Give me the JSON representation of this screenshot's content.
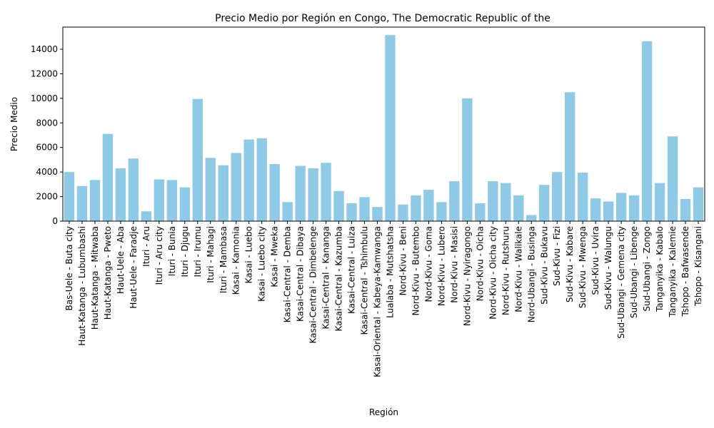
{
  "chart_data": {
    "type": "bar",
    "title": "Precio Medio por Región en Congo, The Democratic Republic of the",
    "xlabel": "Región",
    "ylabel": "Precio Medio",
    "ylim": [
      0,
      15800
    ],
    "yticks": [
      0,
      2000,
      4000,
      6000,
      8000,
      10000,
      12000,
      14000
    ],
    "bar_color": "#8ecae6",
    "grid": false,
    "categories": [
      "Bas-Uele - Buta city",
      "Haut-Katanga - Lubumbashi",
      "Haut-Katanga - Mitwaba",
      "Haut-Katanga - Pweto",
      "Haut-Uele - Aba",
      "Haut-Uele - Faradje",
      "Ituri - Aru",
      "Ituri - Aru city",
      "Ituri - Bunia",
      "Ituri - Djugu",
      "Ituri - Irumu",
      "Ituri - Mahagi",
      "Ituri - Mambasa",
      "Kasai - Kamonia",
      "Kasai - Luebo",
      "Kasai - Luebo city",
      "Kasai - Mweka",
      "Kasai-Central - Demba",
      "Kasai-Central - Dibaya",
      "Kasai-Central - Dimbelenge",
      "Kasai-Central - Kananga",
      "Kasai-Central - Kazumba",
      "Kasai-Central - Luiza",
      "Kasai-Central - Tshimbulu",
      "Kasai-Oriental - Kabeya-Kamwanga",
      "Lualaba - Mutshatsha",
      "Nord-Kivu - Beni",
      "Nord-Kivu - Butembo",
      "Nord-Kivu - Goma",
      "Nord-Kivu - Lubero",
      "Nord-Kivu - Masisi",
      "Nord-Kivu - Nyiragongo",
      "Nord-Kivu - Oicha",
      "Nord-Kivu - Oicha city",
      "Nord-Kivu - Rutshuru",
      "Nord-Kivu - Walikale",
      "Nord-Ubangi - Businga",
      "Sud-Kivu - Bukavu",
      "Sud-Kivu - Fizi",
      "Sud-Kivu - Kabare",
      "Sud-Kivu - Mwenga",
      "Sud-Kivu - Uvira",
      "Sud-Kivu - Walungu",
      "Sud-Ubangi - Gemena city",
      "Sud-Ubangi - Libenge",
      "Sud-Ubangi - Zongo",
      "Tanganyika - Kabalo",
      "Tanganyika - Kalemie",
      "Tshopo - Bafwasende",
      "Tshopo - Kisangani"
    ],
    "values": [
      4000,
      2850,
      3350,
      7100,
      4300,
      5100,
      800,
      3400,
      3350,
      2750,
      9950,
      5150,
      4550,
      5550,
      6650,
      6750,
      4650,
      1550,
      4500,
      4300,
      4750,
      2450,
      1450,
      1950,
      1150,
      15150,
      1350,
      2100,
      2550,
      1550,
      3250,
      10000,
      1450,
      3250,
      3100,
      2100,
      500,
      2950,
      4000,
      10500,
      3950,
      1850,
      1600,
      2300,
      2100,
      14650,
      3100,
      6900,
      1800,
      2750
    ]
  }
}
